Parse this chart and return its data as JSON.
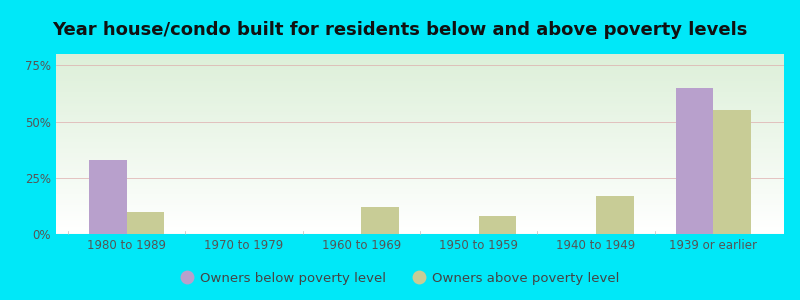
{
  "title": "Year house/condo built for residents below and above poverty levels",
  "categories": [
    "1980 to 1989",
    "1970 to 1979",
    "1960 to 1969",
    "1950 to 1959",
    "1940 to 1949",
    "1939 or earlier"
  ],
  "below_poverty": [
    33,
    0,
    0,
    0,
    0,
    65
  ],
  "above_poverty": [
    10,
    0,
    12,
    8,
    17,
    55
  ],
  "below_color": "#b8a0cc",
  "above_color": "#c8cc96",
  "background_outer": "#00e8f8",
  "background_inner_top": "#dcefd8",
  "background_inner_bottom": "#ffffff",
  "yticks": [
    0,
    25,
    50,
    75
  ],
  "ylim": [
    0,
    80
  ],
  "legend_below": "Owners below poverty level",
  "legend_above": "Owners above poverty level",
  "title_fontsize": 13,
  "tick_fontsize": 8.5,
  "legend_fontsize": 9.5,
  "bar_width": 0.32
}
